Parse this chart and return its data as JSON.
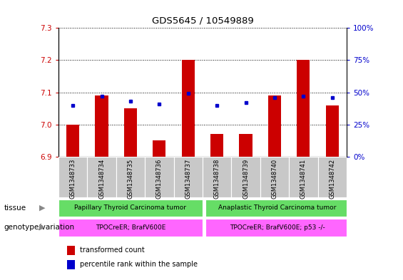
{
  "title": "GDS5645 / 10549889",
  "samples": [
    "GSM1348733",
    "GSM1348734",
    "GSM1348735",
    "GSM1348736",
    "GSM1348737",
    "GSM1348738",
    "GSM1348739",
    "GSM1348740",
    "GSM1348741",
    "GSM1348742"
  ],
  "transformed_count": [
    7.0,
    7.09,
    7.05,
    6.95,
    7.2,
    6.97,
    6.97,
    7.09,
    7.2,
    7.06
  ],
  "percentile_rank": [
    40,
    47,
    43,
    41,
    49,
    40,
    42,
    46,
    47,
    46
  ],
  "ylim_left": [
    6.9,
    7.3
  ],
  "ylim_right": [
    0,
    100
  ],
  "yticks_left": [
    6.9,
    7.0,
    7.1,
    7.2,
    7.3
  ],
  "yticks_right": [
    0,
    25,
    50,
    75,
    100
  ],
  "bar_color": "#cc0000",
  "dot_color": "#0000cc",
  "bar_width": 0.45,
  "tissue_groups": [
    {
      "label": "Papillary Thyroid Carcinoma tumor",
      "start": 0,
      "end": 5,
      "color": "#66dd66"
    },
    {
      "label": "Anaplastic Thyroid Carcinoma tumor",
      "start": 5,
      "end": 10,
      "color": "#66dd66"
    }
  ],
  "genotype_groups": [
    {
      "label": "TPOCreER; BrafV600E",
      "start": 0,
      "end": 5,
      "color": "#ff66ff"
    },
    {
      "label": "TPOCreER; BrafV600E; p53 -/-",
      "start": 5,
      "end": 10,
      "color": "#ff66ff"
    }
  ],
  "legend_items": [
    {
      "color": "#cc0000",
      "label": "transformed count"
    },
    {
      "color": "#0000cc",
      "label": "percentile rank within the sample"
    }
  ],
  "tissue_label": "tissue",
  "genotype_label": "genotype/variation",
  "left_axis_color": "#cc0000",
  "right_axis_color": "#0000cc",
  "grid_color": "black",
  "tick_bg_color": "#c8c8c8"
}
